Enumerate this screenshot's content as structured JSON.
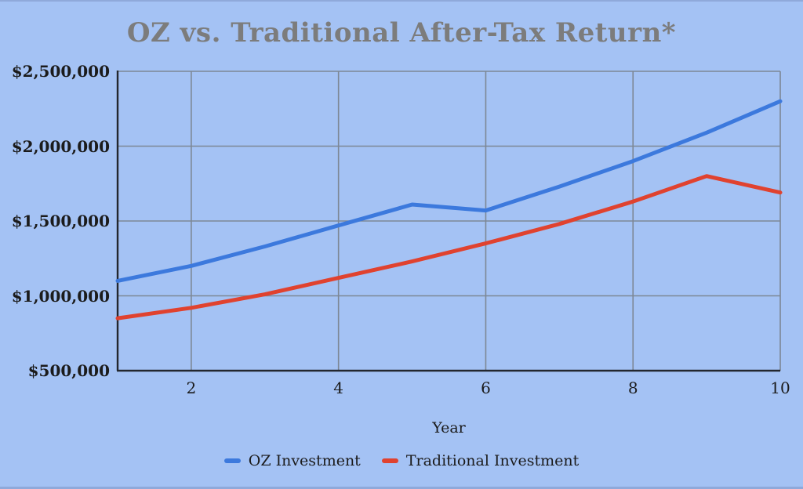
{
  "page": {
    "background_color": "#a4c2f4",
    "title_color": "#7c7c7c",
    "text_color": "#1b1b1b",
    "grid_color": "#7d8795",
    "axis_color": "#23272e"
  },
  "chart_data": {
    "type": "line",
    "title": "OZ vs. Traditional After-Tax Return*",
    "xlabel": "Year",
    "ylabel": "",
    "x": [
      1,
      2,
      3,
      4,
      5,
      6,
      7,
      8,
      9,
      10
    ],
    "xlim": [
      1,
      10
    ],
    "ylim": [
      500000,
      2500000
    ],
    "x_ticks": [
      2,
      4,
      6,
      8,
      10
    ],
    "x_tick_labels": [
      "2",
      "4",
      "6",
      "8",
      "10"
    ],
    "y_ticks": [
      500000,
      1000000,
      1500000,
      2000000,
      2500000
    ],
    "y_tick_labels": [
      "$500,000",
      "$1,000,000",
      "$1,500,000",
      "$2,000,000",
      "$2,500,000"
    ],
    "grid": true,
    "legend_position": "bottom",
    "series": [
      {
        "name": "OZ Investment",
        "color": "#3c79dd",
        "values": [
          1100000,
          1200000,
          1330000,
          1470000,
          1610000,
          1570000,
          1730000,
          1900000,
          2090000,
          2300000
        ]
      },
      {
        "name": "Traditional Investment",
        "color": "#e0422f",
        "values": [
          850000,
          920000,
          1010000,
          1120000,
          1230000,
          1350000,
          1480000,
          1630000,
          1800000,
          1690000
        ]
      }
    ]
  }
}
